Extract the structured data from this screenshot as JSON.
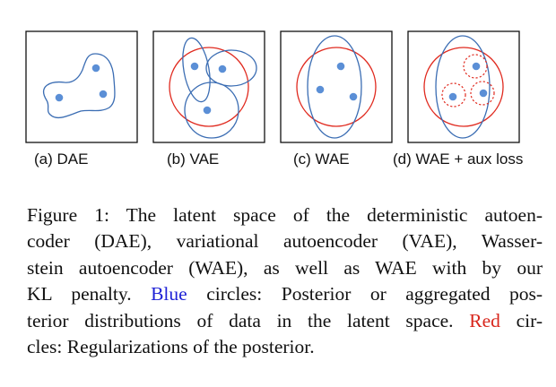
{
  "figure": {
    "panels": [
      {
        "id": "a",
        "label": "(a)  DAE"
      },
      {
        "id": "b",
        "label": "(b) VAE"
      },
      {
        "id": "c",
        "label": "(c) WAE"
      },
      {
        "id": "d",
        "label": "(d) WAE + aux loss"
      }
    ],
    "colors": {
      "posterior": "#3b6db3",
      "regularization": "#e02a1f",
      "point": "#5b8fd6"
    }
  },
  "caption": {
    "line1": "Figure 1: The latent space of the deterministic autoen-",
    "line2": "coder (DAE), variational autoencoder (VAE), Wasser-",
    "line3": "stein autoencoder (WAE), as well as WAE with by our",
    "line4_before": "KL penalty.",
    "line4_blue": "Blue",
    "line4_after": "circles: Posterior or aggregated pos-",
    "line5_before": "terior distributions of data in the latent space.",
    "line5_red": "Red",
    "line5_after": "cir-",
    "line6": "cles: Regularizations of the posterior."
  }
}
